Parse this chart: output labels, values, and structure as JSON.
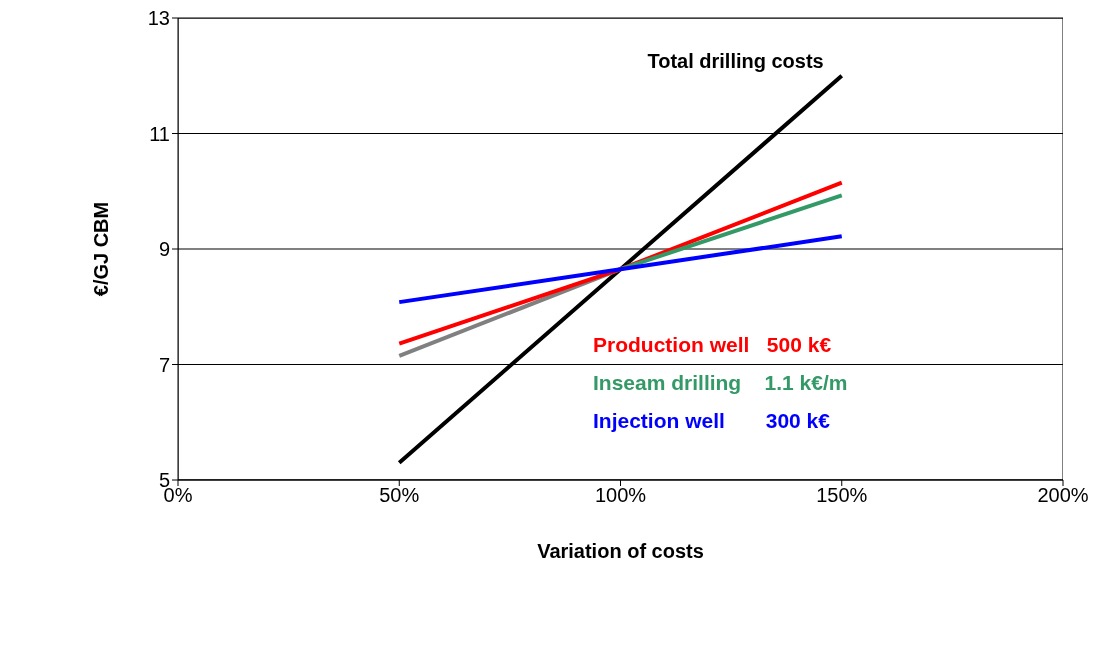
{
  "chart_data": {
    "type": "line",
    "xlabel": "Variation of costs",
    "ylabel": "€/GJ CBM",
    "x": [
      50,
      100,
      150
    ],
    "series": [
      {
        "name": "Total drilling costs",
        "color": "#000000",
        "values": [
          5.3,
          8.65,
          12.0
        ]
      },
      {
        "color": "#808080",
        "values": [
          7.15,
          8.65,
          null
        ]
      },
      {
        "name": "Production well   500 k€",
        "color": "#ff0000",
        "values": [
          7.36,
          8.65,
          10.15
        ]
      },
      {
        "name": "Inseam drilling    1.1 k€/m",
        "color": "#339966",
        "values": [
          null,
          8.65,
          9.93
        ]
      },
      {
        "name": "Injection well       300 k€",
        "color": "#0000ff",
        "values": [
          8.08,
          8.65,
          9.22
        ]
      }
    ],
    "xlim": [
      0,
      200
    ],
    "xticks": [
      {
        "value": 0,
        "label": "0%"
      },
      {
        "value": 50,
        "label": "50%"
      },
      {
        "value": 100,
        "label": "100%"
      },
      {
        "value": 150,
        "label": "150%"
      },
      {
        "value": 200,
        "label": "200%"
      }
    ],
    "ylim": [
      5,
      13
    ],
    "yticks": [
      5,
      7,
      9,
      11,
      13
    ],
    "grid": "y",
    "legend": "center",
    "marker": "none",
    "line_style": "solid"
  }
}
